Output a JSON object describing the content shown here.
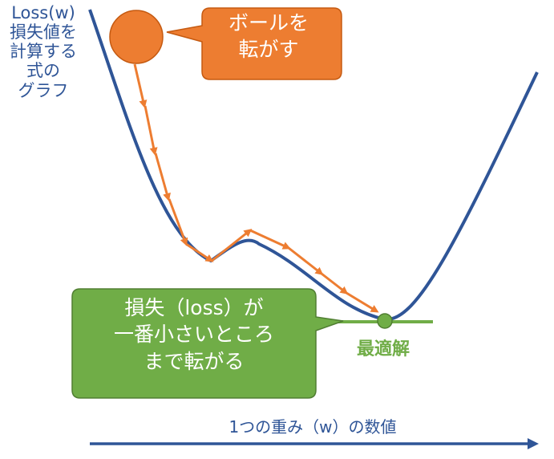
{
  "axis_label_y": "Loss(w)\n損失値を\n計算する\n式の\nグラフ",
  "axis_label_x": "1つの重み（w）の数値",
  "ball_callout": "ボールを\n転がす",
  "loss_callout": "損失（loss）が\n一番小さいところ\nまで転がる",
  "optimum_label": "最適解",
  "colors": {
    "curve": "#2F5597",
    "ball": "#ED7D31",
    "path": "#ED7D31",
    "minimum": "#70AD47",
    "ball_callout_bg": "#ED7D31",
    "loss_callout_bg": "#70AD47",
    "axis": "#2F5597"
  }
}
